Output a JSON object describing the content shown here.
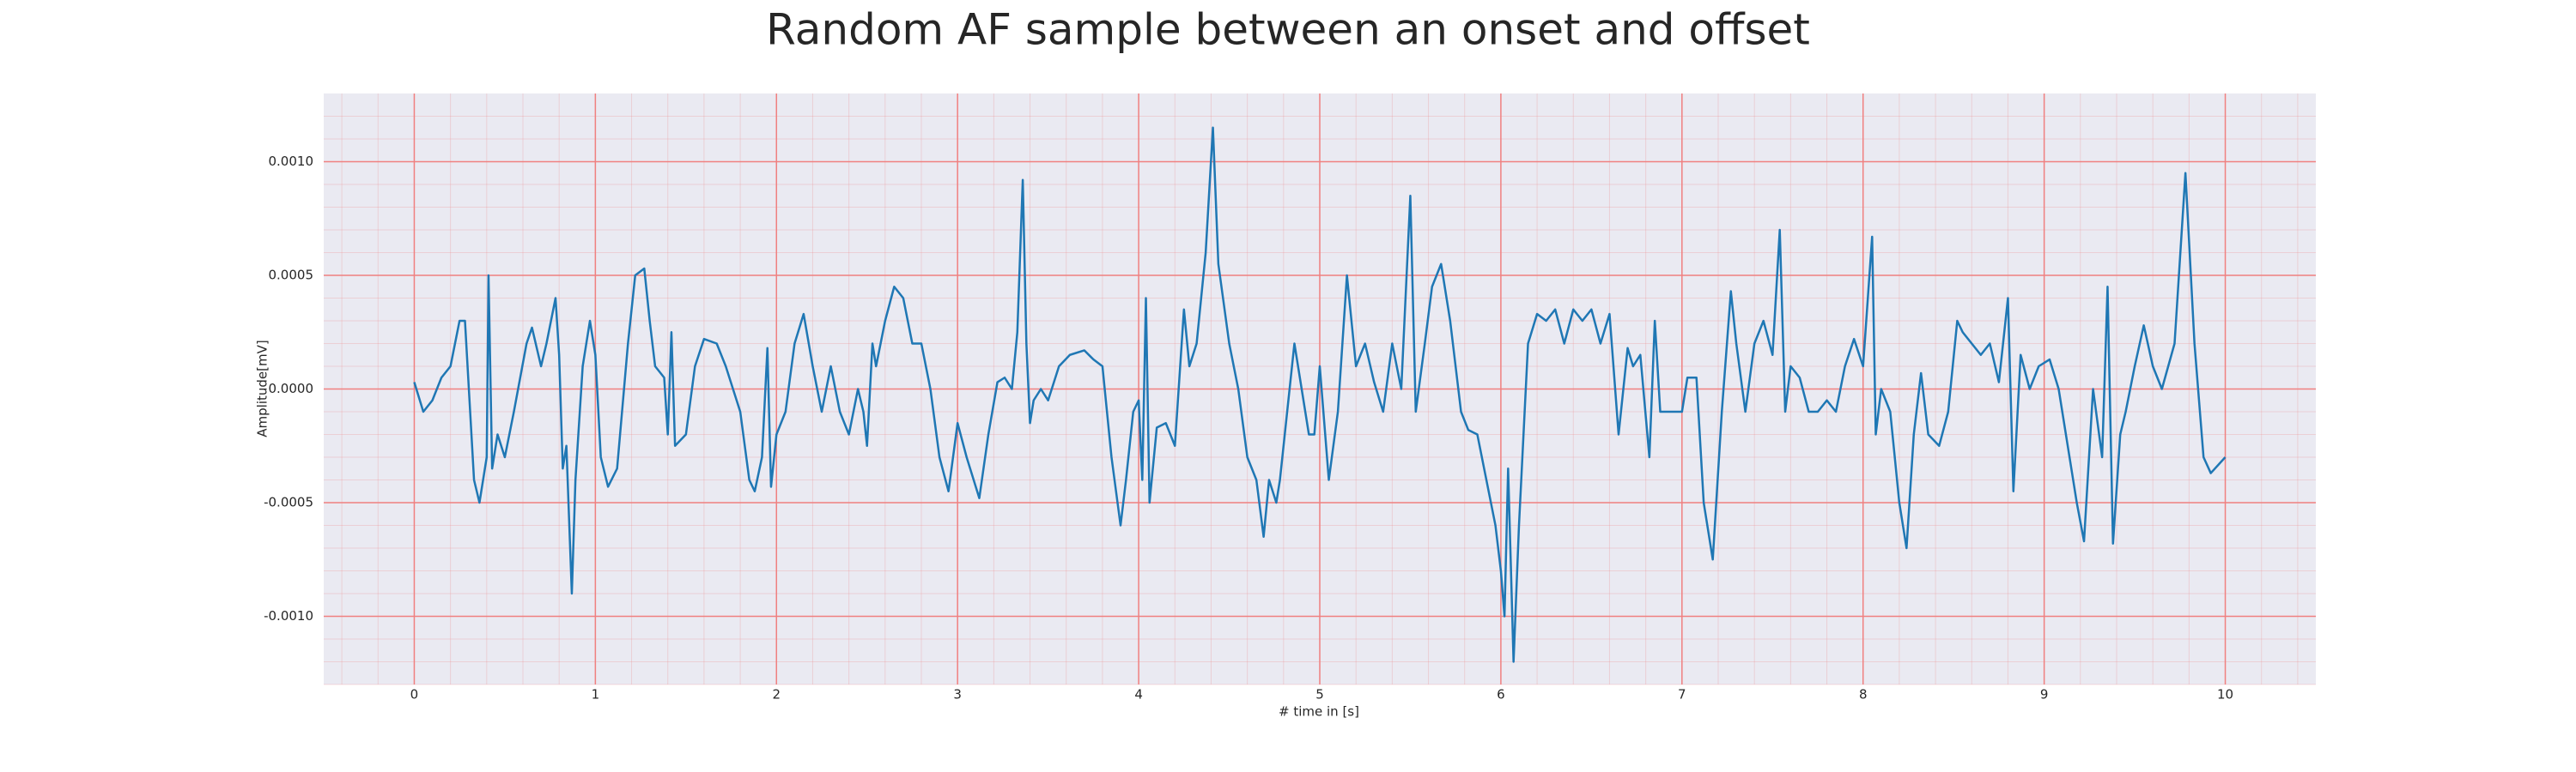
{
  "chart_data": {
    "type": "line",
    "title": "Random AF sample between an onset and offset",
    "xlabel": "# time in [s]",
    "ylabel": "Amplitude[mV]",
    "color": "#1f77b4",
    "background": "#eaeaf2",
    "grid_color": "#f08080",
    "minor_grid": true,
    "xlim": [
      -0.5,
      10.5
    ],
    "ylim": [
      -0.0013,
      0.0013
    ],
    "xticks": [
      0,
      1,
      2,
      3,
      4,
      5,
      6,
      7,
      8,
      9,
      10
    ],
    "yticks": [
      {
        "value": -0.001,
        "label": "-0.0010"
      },
      -0.0005,
      {
        "value": 0,
        "label": "0.0000"
      },
      0.0005,
      {
        "value": 0.001,
        "label": "0.0010"
      }
    ],
    "x": [
      0,
      0.05,
      0.1,
      0.15,
      0.2,
      0.25,
      0.28,
      0.33,
      0.36,
      0.4,
      0.41,
      0.43,
      0.46,
      0.5,
      0.55,
      0.62,
      0.65,
      0.7,
      0.73,
      0.78,
      0.8,
      0.82,
      0.84,
      0.87,
      0.89,
      0.93,
      0.97,
      1.0,
      1.03,
      1.07,
      1.12,
      1.18,
      1.22,
      1.27,
      1.3,
      1.33,
      1.38,
      1.4,
      1.42,
      1.44,
      1.5,
      1.55,
      1.6,
      1.67,
      1.72,
      1.8,
      1.85,
      1.88,
      1.92,
      1.95,
      1.97,
      2.0,
      2.05,
      2.1,
      2.15,
      2.2,
      2.25,
      2.3,
      2.35,
      2.4,
      2.45,
      2.48,
      2.5,
      2.53,
      2.55,
      2.6,
      2.65,
      2.7,
      2.75,
      2.8,
      2.85,
      2.9,
      2.95,
      3.0,
      3.05,
      3.12,
      3.17,
      3.22,
      3.26,
      3.3,
      3.33,
      3.36,
      3.38,
      3.4,
      3.42,
      3.46,
      3.5,
      3.56,
      3.62,
      3.7,
      3.75,
      3.8,
      3.85,
      3.9,
      3.93,
      3.97,
      4.0,
      4.02,
      4.04,
      4.06,
      4.1,
      4.15,
      4.2,
      4.25,
      4.28,
      4.32,
      4.37,
      4.41,
      4.44,
      4.5,
      4.55,
      4.6,
      4.65,
      4.69,
      4.72,
      4.76,
      4.78,
      4.82,
      4.86,
      4.9,
      4.94,
      4.97,
      5.0,
      5.05,
      5.1,
      5.15,
      5.2,
      5.25,
      5.3,
      5.35,
      5.4,
      5.45,
      5.5,
      5.53,
      5.58,
      5.62,
      5.67,
      5.72,
      5.78,
      5.82,
      5.87,
      5.92,
      5.97,
      6.0,
      6.02,
      6.04,
      6.07,
      6.1,
      6.15,
      6.2,
      6.25,
      6.3,
      6.35,
      6.4,
      6.45,
      6.5,
      6.55,
      6.6,
      6.65,
      6.7,
      6.73,
      6.77,
      6.82,
      6.85,
      6.88,
      6.93,
      7.0,
      7.03,
      7.08,
      7.12,
      7.17,
      7.22,
      7.27,
      7.3,
      7.35,
      7.4,
      7.45,
      7.5,
      7.54,
      7.57,
      7.6,
      7.65,
      7.7,
      7.75,
      7.8,
      7.85,
      7.9,
      7.95,
      8.0,
      8.05,
      8.07,
      8.1,
      8.15,
      8.2,
      8.24,
      8.28,
      8.32,
      8.36,
      8.42,
      8.47,
      8.52,
      8.55,
      8.6,
      8.65,
      8.7,
      8.75,
      8.8,
      8.83,
      8.87,
      8.92,
      8.97,
      9.03,
      9.08,
      9.12,
      9.18,
      9.22,
      9.27,
      9.32,
      9.35,
      9.38,
      9.42,
      9.45,
      9.5,
      9.55,
      9.6,
      9.65,
      9.72,
      9.78,
      9.83,
      9.88,
      9.92,
      10.0
    ],
    "values": [
      3e-05,
      -0.0001,
      -5e-05,
      5e-05,
      0.0001,
      0.0003,
      0.0003,
      -0.0004,
      -0.0005,
      -0.0003,
      0.0005,
      -0.00035,
      -0.0002,
      -0.0003,
      -0.0001,
      0.0002,
      0.00027,
      0.0001,
      0.0002,
      0.0004,
      0.00015,
      -0.00035,
      -0.00025,
      -0.0009,
      -0.0004,
      0.0001,
      0.0003,
      0.00015,
      -0.0003,
      -0.00043,
      -0.00035,
      0.0002,
      0.0005,
      0.00053,
      0.0003,
      0.0001,
      5e-05,
      -0.0002,
      0.00025,
      -0.00025,
      -0.0002,
      0.0001,
      0.00022,
      0.0002,
      0.0001,
      -0.0001,
      -0.0004,
      -0.00045,
      -0.0003,
      0.00018,
      -0.00043,
      -0.0002,
      -0.0001,
      0.0002,
      0.00033,
      0.0001,
      -0.0001,
      0.0001,
      -0.0001,
      -0.0002,
      0,
      -0.0001,
      -0.00025,
      0.0002,
      0.0001,
      0.0003,
      0.00045,
      0.0004,
      0.0002,
      0.0002,
      0,
      -0.0003,
      -0.00045,
      -0.00015,
      -0.0003,
      -0.00048,
      -0.0002,
      3e-05,
      5e-05,
      0,
      0.00025,
      0.00092,
      0.0002,
      -0.00015,
      -5e-05,
      0,
      -5e-05,
      0.0001,
      0.00015,
      0.00017,
      0.00013,
      0.0001,
      -0.0003,
      -0.0006,
      -0.0004,
      -0.0001,
      -5e-05,
      -0.0004,
      0.0004,
      -0.0005,
      -0.00017,
      -0.00015,
      -0.00025,
      0.00035,
      0.0001,
      0.0002,
      0.0006,
      0.00115,
      0.00055,
      0.0002,
      0,
      -0.0003,
      -0.0004,
      -0.00065,
      -0.0004,
      -0.0005,
      -0.0004,
      -0.0001,
      0.0002,
      0,
      -0.0002,
      -0.0002,
      0.0001,
      -0.0004,
      -0.0001,
      0.0005,
      0.0001,
      0.0002,
      3e-05,
      -0.0001,
      0.0002,
      0,
      0.00085,
      -0.0001,
      0.0002,
      0.00045,
      0.00055,
      0.0003,
      -0.0001,
      -0.00018,
      -0.0002,
      -0.0004,
      -0.0006,
      -0.0008,
      -0.001,
      -0.00035,
      -0.0012,
      -0.0006,
      0.0002,
      0.00033,
      0.0003,
      0.00035,
      0.0002,
      0.00035,
      0.0003,
      0.00035,
      0.0002,
      0.00033,
      -0.0002,
      0.00018,
      0.0001,
      0.00015,
      -0.0003,
      0.0003,
      -0.0001,
      -0.0001,
      -0.0001,
      5e-05,
      5e-05,
      -0.0005,
      -0.00075,
      -0.0001,
      0.00043,
      0.0002,
      -0.0001,
      0.0002,
      0.0003,
      0.00015,
      0.0007,
      -0.0001,
      0.0001,
      5e-05,
      -0.0001,
      -0.0001,
      -5e-05,
      -0.0001,
      0.0001,
      0.00022,
      0.0001,
      0.00067,
      -0.0002,
      0,
      -0.0001,
      -0.0005,
      -0.0007,
      -0.0002,
      7e-05,
      -0.0002,
      -0.00025,
      -0.0001,
      0.0003,
      0.00025,
      0.0002,
      0.00015,
      0.0002,
      3e-05,
      0.0004,
      -0.00045,
      0.00015,
      0,
      0.0001,
      0.00013,
      0,
      -0.0002,
      -0.0005,
      -0.00067,
      0,
      -0.0003,
      0.00045,
      -0.00068,
      -0.0002,
      -0.0001,
      0.0001,
      0.00028,
      0.0001,
      0,
      0.0002,
      0.00095,
      0.0002,
      -0.0003,
      -0.00037,
      -0.0003
    ]
  }
}
